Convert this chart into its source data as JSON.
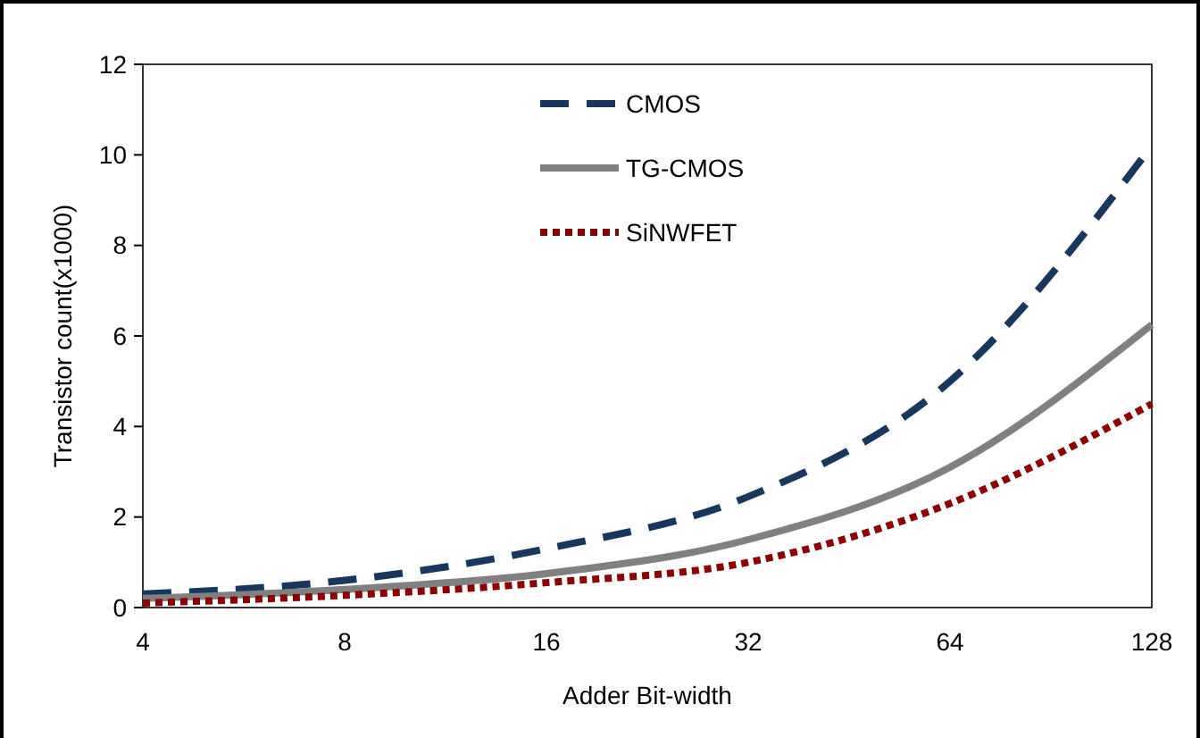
{
  "chart_data": {
    "type": "line",
    "xlabel": "Adder Bit-width",
    "ylabel": "Transistor count(x1000)",
    "log": "x",
    "x": [
      4,
      8,
      16,
      32,
      64,
      128
    ],
    "xlim": [
      4,
      128
    ],
    "xticks": [
      4,
      8,
      16,
      32,
      64,
      128
    ],
    "ylim": [
      0,
      12
    ],
    "yticks": [
      0,
      2,
      4,
      6,
      8,
      10,
      12
    ],
    "grid": false,
    "legend": "top",
    "marker": "none",
    "series": [
      {
        "name": "CMOS",
        "color": "#17375e",
        "line_style": "dashed",
        "values": [
          0.3,
          0.6,
          1.3,
          2.45,
          5.0,
          10.2
        ]
      },
      {
        "name": "TG-CMOS",
        "color": "#808080",
        "line_style": "solid",
        "values": [
          0.2,
          0.4,
          0.75,
          1.5,
          3.1,
          6.25
        ]
      },
      {
        "name": "SiNWFET",
        "color": "#8b0000",
        "line_style": "dotted",
        "values": [
          0.1,
          0.27,
          0.55,
          1.0,
          2.3,
          4.5
        ]
      }
    ]
  }
}
